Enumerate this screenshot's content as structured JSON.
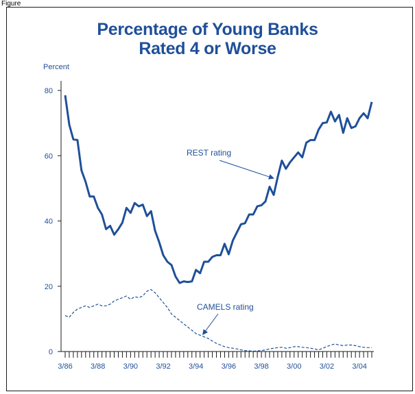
{
  "figure_label": "Figure",
  "chart_data": {
    "type": "line",
    "title_line1": "Percentage of Young Banks",
    "title_line2": "Rated 4 or Worse",
    "ylabel": "Percent",
    "xlabel": "",
    "ylim": [
      0,
      80
    ],
    "yticks": [
      0,
      20,
      40,
      60,
      80
    ],
    "x_tick_labels": [
      "3/86",
      "3/88",
      "3/90",
      "3/92",
      "3/94",
      "3/96",
      "3/98",
      "3/00",
      "3/02",
      "3/04"
    ],
    "x_start": "3/86",
    "x_step": "quarter",
    "colors": {
      "line": "#1f4f99",
      "title": "#1f4f99"
    },
    "series": [
      {
        "name": "REST rating",
        "style": "solid",
        "values": [
          78.5,
          69.5,
          65.0,
          64.8,
          55.5,
          52.0,
          47.5,
          47.5,
          44.0,
          42.0,
          37.5,
          38.5,
          35.8,
          37.5,
          39.5,
          44.0,
          42.5,
          45.5,
          44.5,
          45.0,
          41.5,
          43.0,
          37.0,
          33.5,
          29.5,
          27.5,
          26.5,
          23.0,
          21.0,
          21.5,
          21.3,
          21.5,
          25.0,
          24.0,
          27.5,
          27.5,
          29.0,
          29.5,
          29.5,
          33.0,
          29.8,
          34.0,
          36.5,
          39.0,
          39.3,
          42.0,
          42.0,
          44.5,
          44.8,
          46.0,
          50.5,
          48.0,
          53.5,
          58.5,
          56.0,
          58.0,
          59.5,
          61.0,
          59.5,
          64.0,
          64.8,
          64.8,
          68.0,
          70.0,
          70.2,
          73.5,
          70.5,
          72.5,
          67.0,
          71.5,
          68.5,
          69.0,
          71.5,
          73.0,
          71.5,
          76.5
        ]
      },
      {
        "name": "CAMELS rating",
        "style": "dashed",
        "values": [
          11.0,
          10.5,
          12.0,
          13.0,
          13.5,
          14.0,
          13.5,
          14.0,
          14.5,
          14.0,
          14.0,
          14.5,
          15.5,
          16.0,
          16.5,
          17.0,
          16.0,
          16.8,
          16.5,
          17.0,
          18.5,
          19.0,
          18.0,
          16.5,
          15.0,
          13.5,
          11.5,
          10.5,
          9.5,
          8.5,
          7.5,
          6.5,
          5.5,
          5.0,
          4.5,
          4.0,
          3.2,
          2.5,
          2.0,
          1.5,
          1.2,
          1.0,
          0.8,
          0.5,
          0.3,
          0.2,
          0.1,
          0.2,
          0.3,
          0.5,
          0.8,
          1.0,
          1.2,
          1.3,
          1.0,
          1.2,
          1.5,
          1.5,
          1.3,
          1.2,
          1.0,
          0.8,
          0.5,
          1.0,
          1.5,
          2.0,
          2.3,
          2.0,
          1.8,
          2.0,
          2.0,
          1.8,
          1.5,
          1.3,
          1.2,
          1.2
        ]
      }
    ],
    "annotations": [
      {
        "text": "REST rating",
        "points_to": "REST rating"
      },
      {
        "text": "CAMELS rating",
        "points_to": "CAMELS rating"
      }
    ],
    "grid": false
  }
}
